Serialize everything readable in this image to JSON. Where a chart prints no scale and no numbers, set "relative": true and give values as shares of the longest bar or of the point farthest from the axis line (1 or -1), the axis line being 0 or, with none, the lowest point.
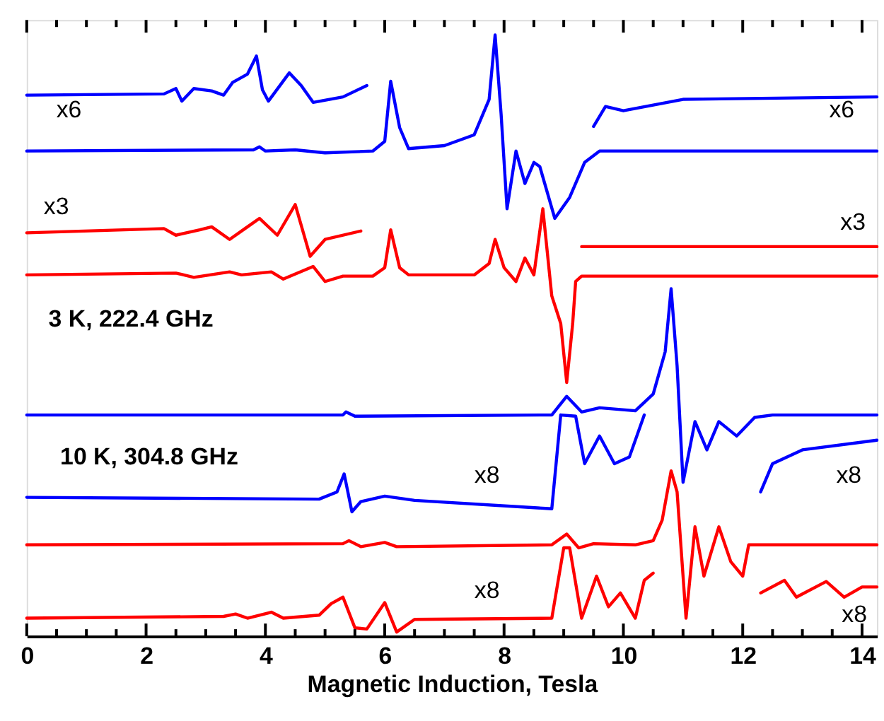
{
  "chart_data": {
    "type": "line",
    "relative": true,
    "xlabel": "Magnetic Induction, Tesla",
    "xlim": [
      0,
      14.25
    ],
    "xticks": [
      0,
      {
        "value": 0.5,
        "label": null
      },
      {
        "value": 1,
        "label": null
      },
      {
        "value": 1.5,
        "label": null
      },
      2,
      {
        "value": 2.5,
        "label": null
      },
      {
        "value": 3,
        "label": null
      },
      {
        "value": 3.5,
        "label": null
      },
      4,
      {
        "value": 4.5,
        "label": null
      },
      {
        "value": 5,
        "label": null
      },
      {
        "value": 5.5,
        "label": null
      },
      6,
      {
        "value": 6.5,
        "label": null
      },
      {
        "value": 7,
        "label": null
      },
      {
        "value": 7.5,
        "label": null
      },
      8,
      {
        "value": 8.5,
        "label": null
      },
      {
        "value": 9,
        "label": null
      },
      {
        "value": 9.5,
        "label": null
      },
      10,
      {
        "value": 10.5,
        "label": null
      },
      {
        "value": 11,
        "label": null
      },
      {
        "value": 11.5,
        "label": null
      },
      12,
      {
        "value": 12.5,
        "label": null
      },
      {
        "value": 13,
        "label": null
      },
      {
        "value": 13.5,
        "label": null
      },
      14
    ],
    "tick_labels": "x",
    "grid": false,
    "marker": "none",
    "line_style": "solid",
    "series": [
      {
        "color": "#0000ff",
        "x": [
          0,
          3.8,
          3.9,
          4.0,
          4.5,
          5.0,
          5.8,
          6.0,
          6.1,
          6.25,
          6.4,
          7.0,
          7.5,
          7.75,
          7.85,
          7.95,
          8.05,
          8.2,
          8.35,
          8.5,
          8.6,
          8.85,
          9.1,
          9.35,
          9.6,
          14.25
        ],
        "values": [
          0.807,
          0.809,
          0.814,
          0.807,
          0.809,
          0.804,
          0.807,
          0.823,
          0.923,
          0.846,
          0.811,
          0.816,
          0.834,
          0.893,
          1.0,
          0.869,
          0.711,
          0.807,
          0.753,
          0.788,
          0.781,
          0.695,
          0.73,
          0.788,
          0.807,
          0.807
        ]
      },
      {
        "color": "#0000ff",
        "x": [
          0,
          2.3,
          2.5,
          2.6,
          2.8,
          3.1,
          3.3,
          3.45,
          3.7,
          3.85,
          3.95,
          4.05,
          4.4,
          4.6,
          4.8,
          5.3,
          5.7,
          7.5,
          9.5,
          9.7,
          10.0,
          11.0,
          14.25
        ],
        "values": [
          0.9,
          0.902,
          0.911,
          0.89,
          0.911,
          0.907,
          0.9,
          0.921,
          0.935,
          0.965,
          0.909,
          0.89,
          0.937,
          0.916,
          0.888,
          0.897,
          0.916,
          null,
          0.848,
          0.881,
          0.874,
          0.893,
          0.897
        ]
      },
      {
        "color": "#ff0000",
        "x": [
          0,
          2.5,
          2.8,
          3.4,
          3.6,
          4.1,
          4.3,
          4.8,
          5.0,
          5.3,
          5.8,
          6.0,
          6.1,
          6.25,
          6.4,
          7.5,
          7.75,
          7.85,
          8.0,
          8.2,
          8.35,
          8.5,
          8.65,
          8.8,
          8.95,
          9.05,
          9.15,
          9.2,
          9.3,
          14.25
        ],
        "values": [
          0.601,
          0.604,
          0.597,
          0.606,
          0.601,
          0.606,
          0.594,
          0.615,
          0.59,
          0.599,
          0.599,
          0.613,
          0.676,
          0.613,
          0.601,
          0.601,
          0.62,
          0.66,
          0.613,
          0.59,
          0.629,
          0.601,
          0.711,
          0.566,
          0.52,
          0.422,
          0.52,
          0.59,
          0.599,
          0.599
        ]
      },
      {
        "color": "#ff0000",
        "x": [
          0,
          2.3,
          2.5,
          2.9,
          3.1,
          3.4,
          3.7,
          3.9,
          4.2,
          4.5,
          4.75,
          5.0,
          5.6,
          7.5,
          9.3,
          14.25
        ],
        "values": [
          0.671,
          0.678,
          0.667,
          0.676,
          0.681,
          0.66,
          0.681,
          0.695,
          0.667,
          0.718,
          0.632,
          0.66,
          0.674,
          null,
          0.648,
          0.648
        ]
      },
      {
        "color": "#0000ff",
        "x": [
          0,
          5.3,
          5.35,
          5.5,
          8.8,
          9.05,
          9.3,
          9.6,
          10.2,
          10.5,
          10.7,
          10.8,
          10.9,
          11.0,
          11.2,
          11.4,
          11.6,
          11.9,
          12.2,
          12.5,
          14.25
        ],
        "values": [
          0.368,
          0.368,
          0.373,
          0.366,
          0.368,
          0.399,
          0.373,
          0.38,
          0.375,
          0.403,
          0.473,
          0.578,
          0.45,
          0.256,
          0.357,
          0.31,
          0.357,
          0.333,
          0.364,
          0.368,
          0.368
        ]
      },
      {
        "color": "#0000ff",
        "x": [
          0,
          4.9,
          5.2,
          5.32,
          5.45,
          5.6,
          6.0,
          6.5,
          8.8,
          8.95,
          9.2,
          9.35,
          9.6,
          9.85,
          10.1,
          10.35,
          11.5,
          12.3,
          12.5,
          13.0,
          14.25
        ],
        "values": [
          0.231,
          0.228,
          0.24,
          0.27,
          0.207,
          0.224,
          0.233,
          0.226,
          0.212,
          0.368,
          0.366,
          0.287,
          0.333,
          0.287,
          0.298,
          0.368,
          null,
          0.24,
          0.287,
          0.31,
          0.326
        ]
      },
      {
        "color": "#ff0000",
        "x": [
          0,
          5.3,
          5.4,
          5.6,
          6.0,
          6.2,
          8.8,
          9.05,
          9.25,
          9.5,
          10.2,
          10.5,
          10.65,
          10.8,
          10.9,
          11.05,
          11.2,
          11.35,
          11.6,
          11.8,
          12.0,
          12.1,
          14.25
        ],
        "values": [
          0.152,
          0.154,
          0.159,
          0.149,
          0.156,
          0.149,
          0.152,
          0.17,
          0.147,
          0.154,
          0.152,
          0.159,
          0.193,
          0.275,
          0.24,
          0.03,
          0.182,
          0.1,
          0.182,
          0.124,
          0.1,
          0.152,
          0.152
        ]
      },
      {
        "color": "#ff0000",
        "x": [
          0,
          3.3,
          3.5,
          3.7,
          4.1,
          4.3,
          4.9,
          5.1,
          5.3,
          5.5,
          5.7,
          6.0,
          6.2,
          6.5,
          8.8,
          9.0,
          9.1,
          9.3,
          9.55,
          9.75,
          9.95,
          10.2,
          10.35,
          10.5,
          11.5,
          12.3,
          12.7,
          12.9,
          13.4,
          13.7,
          14.0,
          14.25
        ],
        "values": [
          0.03,
          0.033,
          0.037,
          0.03,
          0.04,
          0.03,
          0.035,
          0.054,
          0.065,
          0.014,
          0.012,
          0.056,
          0.007,
          0.028,
          0.03,
          0.147,
          0.147,
          0.03,
          0.1,
          0.049,
          0.072,
          0.03,
          0.093,
          0.105,
          null,
          0.072,
          0.093,
          0.065,
          0.091,
          0.065,
          0.082,
          0.082
        ]
      }
    ],
    "annotations": [
      "x6",
      "x6",
      "x3",
      "x3",
      "3 K, 222.4 GHz",
      "10 K, 304.8 GHz",
      "x8",
      "x8",
      "x8",
      "x8"
    ]
  }
}
